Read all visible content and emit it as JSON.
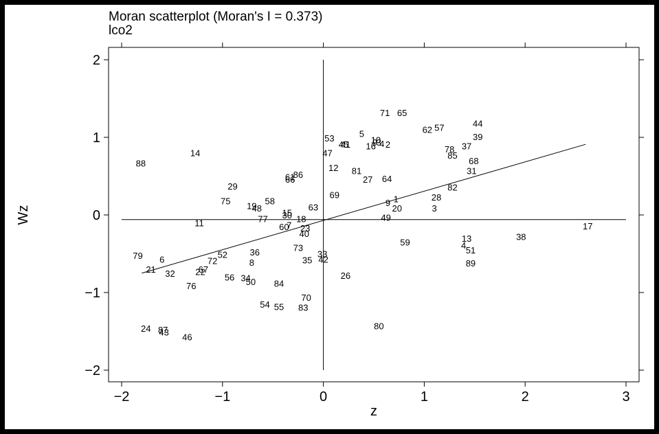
{
  "chart_data": {
    "type": "scatter",
    "title": "Moran scatterplot (Moran's I = 0.373)",
    "subtitle": "lco2",
    "xlabel": "z",
    "ylabel": "Wz",
    "xlim": [
      -2.15,
      3.1
    ],
    "ylim": [
      -2.2,
      2.15
    ],
    "xticks": [
      -2,
      -1,
      0,
      1,
      2,
      3
    ],
    "yticks": [
      -2,
      -1,
      0,
      1,
      2
    ],
    "regression": {
      "x1": -1.8,
      "y1": -0.75,
      "x2": 2.6,
      "y2": 0.91
    },
    "reference_lines": {
      "x": 0,
      "y": -0.06
    },
    "grid": false,
    "points": [
      {
        "label": "88",
        "x": -1.81,
        "y": 0.67
      },
      {
        "label": "14",
        "x": -1.27,
        "y": 0.8
      },
      {
        "label": "29",
        "x": -0.9,
        "y": 0.37
      },
      {
        "label": "75",
        "x": -0.97,
        "y": 0.18
      },
      {
        "label": "11",
        "x": -1.23,
        "y": -0.1
      },
      {
        "label": "79",
        "x": -1.84,
        "y": -0.52
      },
      {
        "label": "6",
        "x": -1.6,
        "y": -0.57
      },
      {
        "label": "21",
        "x": -1.71,
        "y": -0.7
      },
      {
        "label": "32",
        "x": -1.52,
        "y": -0.75
      },
      {
        "label": "72",
        "x": -1.1,
        "y": -0.59
      },
      {
        "label": "52",
        "x": -1.0,
        "y": -0.51
      },
      {
        "label": "22",
        "x": -1.22,
        "y": -0.73
      },
      {
        "label": "67",
        "x": -1.19,
        "y": -0.7
      },
      {
        "label": "76",
        "x": -1.31,
        "y": -0.91
      },
      {
        "label": "56",
        "x": -0.93,
        "y": -0.8
      },
      {
        "label": "34",
        "x": -0.77,
        "y": -0.81
      },
      {
        "label": "50",
        "x": -0.72,
        "y": -0.86
      },
      {
        "label": "36",
        "x": -0.68,
        "y": -0.48
      },
      {
        "label": "8",
        "x": -0.71,
        "y": -0.61
      },
      {
        "label": "19",
        "x": -0.71,
        "y": 0.12
      },
      {
        "label": "48",
        "x": -0.66,
        "y": 0.09
      },
      {
        "label": "58",
        "x": -0.53,
        "y": 0.18
      },
      {
        "label": "77",
        "x": -0.6,
        "y": -0.05
      },
      {
        "label": "15",
        "x": -0.36,
        "y": 0.03
      },
      {
        "label": "30",
        "x": -0.36,
        "y": 0.0
      },
      {
        "label": "60",
        "x": -0.39,
        "y": -0.15
      },
      {
        "label": "7",
        "x": -0.34,
        "y": -0.13
      },
      {
        "label": "18",
        "x": -0.22,
        "y": -0.05
      },
      {
        "label": "23",
        "x": -0.18,
        "y": -0.17
      },
      {
        "label": "40",
        "x": -0.19,
        "y": -0.24
      },
      {
        "label": "63",
        "x": -0.1,
        "y": 0.1
      },
      {
        "label": "61",
        "x": -0.33,
        "y": 0.49
      },
      {
        "label": "66",
        "x": -0.33,
        "y": 0.46
      },
      {
        "label": "86",
        "x": -0.25,
        "y": 0.52
      },
      {
        "label": "73",
        "x": -0.25,
        "y": -0.42
      },
      {
        "label": "35",
        "x": -0.16,
        "y": -0.58
      },
      {
        "label": "84",
        "x": -0.44,
        "y": -0.88
      },
      {
        "label": "54",
        "x": -0.58,
        "y": -1.15
      },
      {
        "label": "55",
        "x": -0.44,
        "y": -1.18
      },
      {
        "label": "70",
        "x": -0.17,
        "y": -1.06
      },
      {
        "label": "83",
        "x": -0.2,
        "y": -1.19
      },
      {
        "label": "24",
        "x": -1.76,
        "y": -1.46
      },
      {
        "label": "87",
        "x": -1.59,
        "y": -1.48
      },
      {
        "label": "43",
        "x": -1.58,
        "y": -1.51
      },
      {
        "label": "46",
        "x": -1.35,
        "y": -1.57
      },
      {
        "label": "53",
        "x": 0.06,
        "y": 0.99
      },
      {
        "label": "47",
        "x": 0.04,
        "y": 0.8
      },
      {
        "label": "12",
        "x": 0.1,
        "y": 0.61
      },
      {
        "label": "81",
        "x": 0.33,
        "y": 0.57
      },
      {
        "label": "27",
        "x": 0.44,
        "y": 0.46
      },
      {
        "label": "64",
        "x": 0.63,
        "y": 0.47
      },
      {
        "label": "69",
        "x": 0.11,
        "y": 0.26
      },
      {
        "label": "45",
        "x": 0.2,
        "y": 0.91
      },
      {
        "label": "41",
        "x": 0.22,
        "y": 0.91
      },
      {
        "label": "5",
        "x": 0.38,
        "y": 1.05
      },
      {
        "label": "16",
        "x": 0.47,
        "y": 0.89
      },
      {
        "label": "10",
        "x": 0.52,
        "y": 0.97
      },
      {
        "label": "9",
        "x": 0.51,
        "y": 0.94
      },
      {
        "label": "3",
        "x": 0.55,
        "y": 0.94
      },
      {
        "label": "4",
        "x": 0.58,
        "y": 0.92
      },
      {
        "label": "2",
        "x": 0.64,
        "y": 0.91
      },
      {
        "label": "71",
        "x": 0.61,
        "y": 1.32
      },
      {
        "label": "65",
        "x": 0.78,
        "y": 1.32
      },
      {
        "label": "62",
        "x": 1.03,
        "y": 1.1
      },
      {
        "label": "57",
        "x": 1.15,
        "y": 1.13
      },
      {
        "label": "44",
        "x": 1.53,
        "y": 1.18
      },
      {
        "label": "39",
        "x": 1.53,
        "y": 1.01
      },
      {
        "label": "37",
        "x": 1.42,
        "y": 0.89
      },
      {
        "label": "78",
        "x": 1.25,
        "y": 0.85
      },
      {
        "label": "85",
        "x": 1.28,
        "y": 0.77
      },
      {
        "label": "68",
        "x": 1.49,
        "y": 0.7
      },
      {
        "label": "31",
        "x": 1.47,
        "y": 0.57
      },
      {
        "label": "82",
        "x": 1.28,
        "y": 0.36
      },
      {
        "label": "28",
        "x": 1.12,
        "y": 0.23
      },
      {
        "label": "3",
        "x": 1.1,
        "y": 0.09
      },
      {
        "label": "1",
        "x": 0.72,
        "y": 0.21
      },
      {
        "label": "9",
        "x": 0.64,
        "y": 0.16
      },
      {
        "label": "20",
        "x": 0.73,
        "y": 0.09
      },
      {
        "label": "49",
        "x": 0.62,
        "y": -0.03
      },
      {
        "label": "59",
        "x": 0.81,
        "y": -0.35
      },
      {
        "label": "13",
        "x": 1.42,
        "y": -0.3
      },
      {
        "label": "4",
        "x": 1.39,
        "y": -0.39
      },
      {
        "label": "51",
        "x": 1.46,
        "y": -0.45
      },
      {
        "label": "89",
        "x": 1.46,
        "y": -0.62
      },
      {
        "label": "38",
        "x": 1.96,
        "y": -0.28
      },
      {
        "label": "17",
        "x": 2.62,
        "y": -0.14
      },
      {
        "label": "33",
        "x": -0.01,
        "y": -0.5
      },
      {
        "label": "42",
        "x": 0.0,
        "y": -0.57
      },
      {
        "label": "26",
        "x": 0.22,
        "y": -0.78
      },
      {
        "label": "80",
        "x": 0.55,
        "y": -1.43
      }
    ]
  }
}
